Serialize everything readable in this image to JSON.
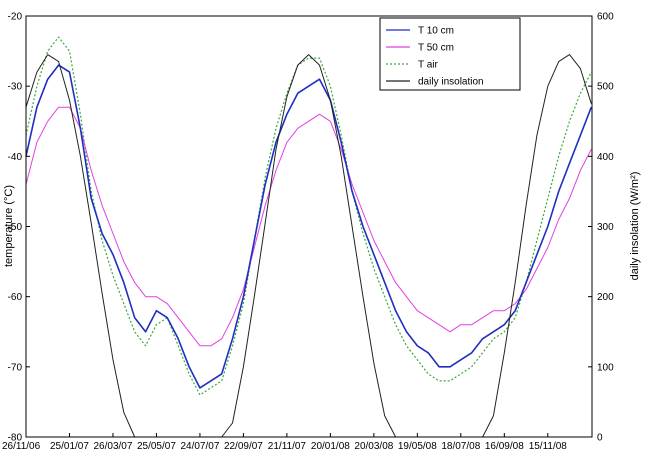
{
  "chart_data": {
    "type": "line",
    "ylabel_left": "temperature (°C)",
    "ylabel_right": "daily insolation (W/m²)",
    "ylim_left": [
      -80,
      -20
    ],
    "ylim_right": [
      0,
      600
    ],
    "yticks_left": [
      -80,
      -70,
      -60,
      -50,
      -40,
      -30,
      -20
    ],
    "yticks_right": [
      0,
      100,
      200,
      300,
      400,
      500,
      600
    ],
    "xlim": [
      "26/11/06",
      "15/01/09"
    ],
    "xtick_labels": [
      "26/11/06",
      "25/01/07",
      "26/03/07",
      "25/05/07",
      "24/07/07",
      "22/09/07",
      "21/11/07",
      "20/01/08",
      "20/03/08",
      "19/05/08",
      "18/07/08",
      "16/09/08",
      "15/11/08"
    ],
    "legend_position": "top-right",
    "series": [
      {
        "name": "T 10 cm",
        "axis": "left",
        "color": "#1f2fbf",
        "style": "solid",
        "x": [
          "26/11/06",
          "11/12/06",
          "26/12/06",
          "10/01/07",
          "25/01/07",
          "09/02/07",
          "24/02/07",
          "11/03/07",
          "26/03/07",
          "10/04/07",
          "25/04/07",
          "10/05/07",
          "25/05/07",
          "09/06/07",
          "24/06/07",
          "09/07/07",
          "24/07/07",
          "08/08/07",
          "23/08/07",
          "07/09/07",
          "22/09/07",
          "07/10/07",
          "22/10/07",
          "06/11/07",
          "21/11/07",
          "06/12/07",
          "21/12/07",
          "05/01/08",
          "20/01/08",
          "04/02/08",
          "19/02/08",
          "05/03/08",
          "20/03/08",
          "04/04/08",
          "19/04/08",
          "04/05/08",
          "19/05/08",
          "03/06/08",
          "18/06/08",
          "03/07/08",
          "18/07/08",
          "02/08/08",
          "17/08/08",
          "01/09/08",
          "16/09/08",
          "01/10/08",
          "16/10/08",
          "31/10/08",
          "15/11/08",
          "30/11/08",
          "15/12/08",
          "30/12/08",
          "14/01/09"
        ],
        "values": [
          -40,
          -33,
          -29,
          -27,
          -28,
          -36,
          -46,
          -51,
          -54,
          -58,
          -63,
          -65,
          -62,
          -63,
          -66,
          -70,
          -73,
          -72,
          -71,
          -66,
          -60,
          -52,
          -44,
          -38,
          -34,
          -31,
          -30,
          -29,
          -32,
          -38,
          -45,
          -50,
          -54,
          -58,
          -62,
          -65,
          -67,
          -68,
          -70,
          -70,
          -69,
          -68,
          -66,
          -65,
          -64,
          -62,
          -58,
          -54,
          -50,
          -45,
          -41,
          -37,
          -33
        ]
      },
      {
        "name": "T 50 cm",
        "axis": "left",
        "color": "#e040e0",
        "style": "solid",
        "x": [
          "26/11/06",
          "11/12/06",
          "26/12/06",
          "10/01/07",
          "25/01/07",
          "09/02/07",
          "24/02/07",
          "11/03/07",
          "26/03/07",
          "10/04/07",
          "25/04/07",
          "10/05/07",
          "25/05/07",
          "09/06/07",
          "24/06/07",
          "09/07/07",
          "24/07/07",
          "08/08/07",
          "23/08/07",
          "07/09/07",
          "22/09/07",
          "07/10/07",
          "22/10/07",
          "06/11/07",
          "21/11/07",
          "06/12/07",
          "21/12/07",
          "05/01/08",
          "20/01/08",
          "04/02/08",
          "19/02/08",
          "05/03/08",
          "20/03/08",
          "04/04/08",
          "19/04/08",
          "04/05/08",
          "19/05/08",
          "03/06/08",
          "18/06/08",
          "03/07/08",
          "18/07/08",
          "02/08/08",
          "17/08/08",
          "01/09/08",
          "16/09/08",
          "01/10/08",
          "16/10/08",
          "31/10/08",
          "15/11/08",
          "30/11/08",
          "15/12/08",
          "30/12/08",
          "14/01/09"
        ],
        "values": [
          -44,
          -38,
          -35,
          -33,
          -33,
          -36,
          -42,
          -47,
          -51,
          -55,
          -58,
          -60,
          -60,
          -61,
          -63,
          -65,
          -67,
          -67,
          -66,
          -63,
          -59,
          -53,
          -47,
          -42,
          -38,
          -36,
          -35,
          -34,
          -35,
          -39,
          -44,
          -48,
          -52,
          -55,
          -58,
          -60,
          -62,
          -63,
          -64,
          -65,
          -64,
          -64,
          -63,
          -62,
          -62,
          -61,
          -59,
          -56,
          -53,
          -49,
          -46,
          -42,
          -39
        ]
      },
      {
        "name": "T air",
        "axis": "left",
        "color": "#3aa83a",
        "style": "dotted",
        "x": [
          "26/11/06",
          "11/12/06",
          "26/12/06",
          "10/01/07",
          "25/01/07",
          "09/02/07",
          "24/02/07",
          "11/03/07",
          "26/03/07",
          "10/04/07",
          "25/04/07",
          "10/05/07",
          "25/05/07",
          "09/06/07",
          "24/06/07",
          "09/07/07",
          "24/07/07",
          "08/08/07",
          "23/08/07",
          "07/09/07",
          "22/09/07",
          "07/10/07",
          "22/10/07",
          "06/11/07",
          "21/11/07",
          "06/12/07",
          "21/12/07",
          "05/01/08",
          "20/01/08",
          "04/02/08",
          "19/02/08",
          "05/03/08",
          "20/03/08",
          "04/04/08",
          "19/04/08",
          "04/05/08",
          "19/05/08",
          "03/06/08",
          "18/06/08",
          "03/07/08",
          "18/07/08",
          "02/08/08",
          "17/08/08",
          "01/09/08",
          "16/09/08",
          "01/10/08",
          "16/10/08",
          "31/10/08",
          "15/11/08",
          "30/11/08",
          "15/12/08",
          "30/12/08",
          "14/01/09"
        ],
        "values": [
          -37,
          -30,
          -25,
          -23,
          -25,
          -34,
          -45,
          -52,
          -57,
          -61,
          -65,
          -67,
          -64,
          -63,
          -67,
          -71,
          -74,
          -73,
          -72,
          -67,
          -61,
          -52,
          -43,
          -36,
          -31,
          -27,
          -26,
          -26,
          -30,
          -37,
          -45,
          -51,
          -56,
          -60,
          -64,
          -67,
          -69,
          -71,
          -72,
          -72,
          -71,
          -70,
          -68,
          -66,
          -65,
          -63,
          -58,
          -52,
          -46,
          -40,
          -35,
          -31,
          -28
        ]
      },
      {
        "name": "daily insolation",
        "axis": "right",
        "color": "#222222",
        "style": "solid",
        "x": [
          "26/11/06",
          "11/12/06",
          "26/12/06",
          "10/01/07",
          "25/01/07",
          "09/02/07",
          "24/02/07",
          "11/03/07",
          "26/03/07",
          "10/04/07",
          "25/04/07",
          "10/05/07",
          "25/05/07",
          "09/06/07",
          "24/06/07",
          "09/07/07",
          "24/07/07",
          "08/08/07",
          "23/08/07",
          "07/09/07",
          "22/09/07",
          "07/10/07",
          "22/10/07",
          "06/11/07",
          "21/11/07",
          "06/12/07",
          "21/12/07",
          "05/01/08",
          "20/01/08",
          "04/02/08",
          "19/02/08",
          "05/03/08",
          "20/03/08",
          "04/04/08",
          "19/04/08",
          "04/05/08",
          "19/05/08",
          "03/06/08",
          "18/06/08",
          "03/07/08",
          "18/07/08",
          "02/08/08",
          "17/08/08",
          "01/09/08",
          "16/09/08",
          "01/10/08",
          "16/10/08",
          "31/10/08",
          "15/11/08",
          "30/11/08",
          "15/12/08",
          "30/12/08",
          "14/01/09"
        ],
        "values": [
          470,
          520,
          545,
          535,
          480,
          400,
          305,
          205,
          110,
          35,
          0,
          0,
          0,
          0,
          0,
          0,
          0,
          0,
          0,
          20,
          100,
          200,
          305,
          410,
          485,
          530,
          545,
          530,
          480,
          400,
          300,
          200,
          105,
          30,
          0,
          0,
          0,
          0,
          0,
          0,
          0,
          0,
          0,
          30,
          120,
          220,
          330,
          430,
          500,
          535,
          545,
          525,
          475
        ]
      }
    ]
  }
}
